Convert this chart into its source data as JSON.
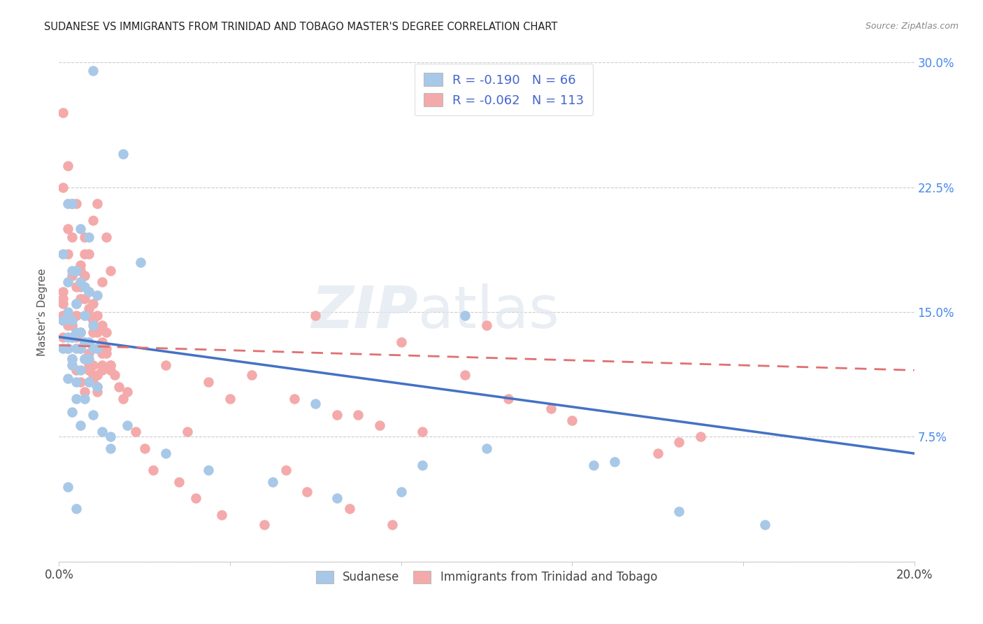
{
  "title": "SUDANESE VS IMMIGRANTS FROM TRINIDAD AND TOBAGO MASTER'S DEGREE CORRELATION CHART",
  "source": "Source: ZipAtlas.com",
  "ylabel": "Master's Degree",
  "xlim": [
    0.0,
    0.2
  ],
  "ylim": [
    0.0,
    0.3
  ],
  "blue_R": -0.19,
  "blue_N": 66,
  "pink_R": -0.062,
  "pink_N": 113,
  "blue_color": "#a8c8e8",
  "pink_color": "#f4aaaa",
  "blue_line_color": "#4472c4",
  "pink_line_color": "#e07070",
  "blue_line_x0": 0.0,
  "blue_line_y0": 0.135,
  "blue_line_x1": 0.2,
  "blue_line_y1": 0.065,
  "pink_line_x0": 0.0,
  "pink_line_y0": 0.13,
  "pink_line_x1": 0.2,
  "pink_line_y1": 0.115,
  "watermark_zip": "ZIP",
  "watermark_atlas": "atlas",
  "blue_points_x": [
    0.008,
    0.015,
    0.002,
    0.005,
    0.019,
    0.003,
    0.007,
    0.001,
    0.004,
    0.002,
    0.006,
    0.009,
    0.003,
    0.005,
    0.007,
    0.004,
    0.006,
    0.008,
    0.002,
    0.003,
    0.005,
    0.007,
    0.009,
    0.001,
    0.004,
    0.006,
    0.008,
    0.003,
    0.005,
    0.007,
    0.002,
    0.004,
    0.006,
    0.001,
    0.003,
    0.005,
    0.007,
    0.009,
    0.002,
    0.004,
    0.003,
    0.005,
    0.06,
    0.095,
    0.13,
    0.012,
    0.016,
    0.025,
    0.035,
    0.05,
    0.065,
    0.08,
    0.085,
    0.1,
    0.125,
    0.145,
    0.165,
    0.002,
    0.003,
    0.004,
    0.006,
    0.008,
    0.01,
    0.012,
    0.002,
    0.004
  ],
  "blue_points_y": [
    0.295,
    0.245,
    0.215,
    0.2,
    0.18,
    0.215,
    0.195,
    0.185,
    0.175,
    0.168,
    0.165,
    0.16,
    0.175,
    0.168,
    0.162,
    0.155,
    0.148,
    0.142,
    0.15,
    0.145,
    0.138,
    0.132,
    0.128,
    0.145,
    0.138,
    0.132,
    0.128,
    0.135,
    0.128,
    0.122,
    0.135,
    0.128,
    0.122,
    0.128,
    0.122,
    0.115,
    0.108,
    0.105,
    0.11,
    0.098,
    0.09,
    0.082,
    0.095,
    0.148,
    0.06,
    0.075,
    0.082,
    0.065,
    0.055,
    0.048,
    0.038,
    0.042,
    0.058,
    0.068,
    0.058,
    0.03,
    0.022,
    0.128,
    0.118,
    0.108,
    0.098,
    0.088,
    0.078,
    0.068,
    0.045,
    0.032
  ],
  "pink_points_x": [
    0.001,
    0.002,
    0.003,
    0.004,
    0.005,
    0.006,
    0.007,
    0.008,
    0.009,
    0.01,
    0.001,
    0.002,
    0.003,
    0.004,
    0.005,
    0.006,
    0.007,
    0.008,
    0.009,
    0.01,
    0.011,
    0.012,
    0.001,
    0.002,
    0.003,
    0.004,
    0.005,
    0.006,
    0.007,
    0.008,
    0.009,
    0.01,
    0.011,
    0.001,
    0.002,
    0.003,
    0.004,
    0.005,
    0.006,
    0.007,
    0.008,
    0.009,
    0.01,
    0.011,
    0.012,
    0.001,
    0.002,
    0.003,
    0.004,
    0.005,
    0.006,
    0.007,
    0.008,
    0.009,
    0.001,
    0.002,
    0.003,
    0.004,
    0.005,
    0.006,
    0.007,
    0.008,
    0.009,
    0.01,
    0.011,
    0.012,
    0.013,
    0.014,
    0.015,
    0.001,
    0.002,
    0.003,
    0.004,
    0.005,
    0.006,
    0.007,
    0.008,
    0.009,
    0.01,
    0.025,
    0.035,
    0.045,
    0.055,
    0.065,
    0.075,
    0.085,
    0.095,
    0.115,
    0.105,
    0.145,
    0.1,
    0.12,
    0.15,
    0.14,
    0.06,
    0.08,
    0.07,
    0.04,
    0.03,
    0.02,
    0.016,
    0.018,
    0.012,
    0.022,
    0.028,
    0.032,
    0.038,
    0.048,
    0.053,
    0.058,
    0.068,
    0.078
  ],
  "pink_points_y": [
    0.225,
    0.2,
    0.195,
    0.215,
    0.175,
    0.195,
    0.185,
    0.205,
    0.215,
    0.168,
    0.162,
    0.185,
    0.172,
    0.165,
    0.158,
    0.172,
    0.162,
    0.155,
    0.148,
    0.142,
    0.195,
    0.175,
    0.155,
    0.148,
    0.142,
    0.175,
    0.165,
    0.158,
    0.152,
    0.145,
    0.138,
    0.132,
    0.125,
    0.148,
    0.142,
    0.135,
    0.148,
    0.138,
    0.132,
    0.125,
    0.118,
    0.112,
    0.125,
    0.138,
    0.118,
    0.135,
    0.128,
    0.122,
    0.115,
    0.108,
    0.102,
    0.118,
    0.112,
    0.105,
    0.158,
    0.148,
    0.142,
    0.135,
    0.128,
    0.122,
    0.115,
    0.108,
    0.102,
    0.115,
    0.128,
    0.118,
    0.112,
    0.105,
    0.098,
    0.27,
    0.238,
    0.215,
    0.155,
    0.178,
    0.185,
    0.148,
    0.138,
    0.128,
    0.118,
    0.118,
    0.108,
    0.112,
    0.098,
    0.088,
    0.082,
    0.078,
    0.112,
    0.092,
    0.098,
    0.072,
    0.142,
    0.085,
    0.075,
    0.065,
    0.148,
    0.132,
    0.088,
    0.098,
    0.078,
    0.068,
    0.102,
    0.078,
    0.115,
    0.055,
    0.048,
    0.038,
    0.028,
    0.022,
    0.055,
    0.042,
    0.032,
    0.022
  ]
}
